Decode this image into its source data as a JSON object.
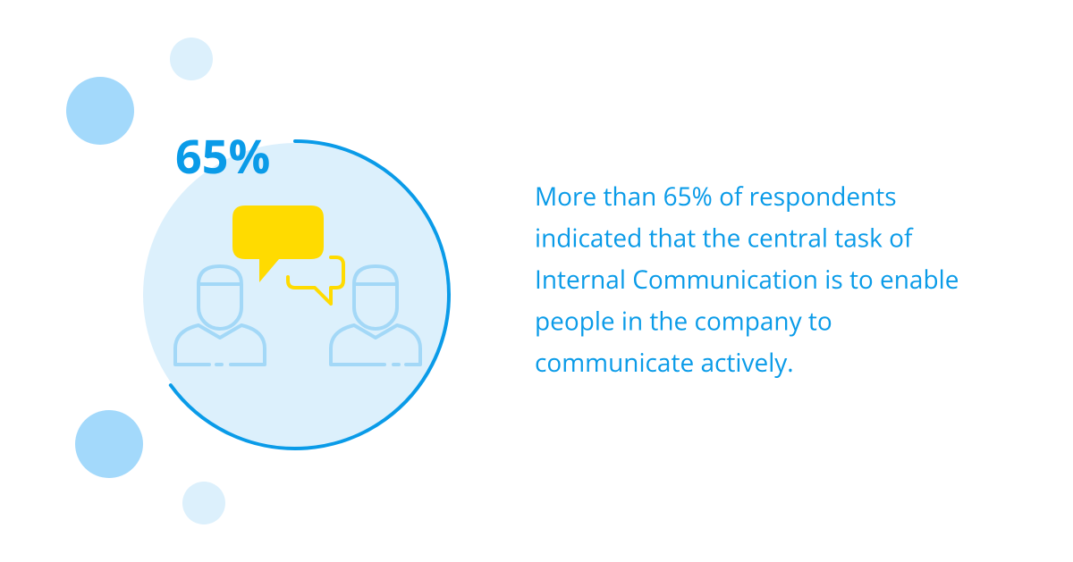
{
  "stat": {
    "value": 65,
    "label": "65%"
  },
  "description": [
    "More than 65% of respondents",
    "indicated that the central task of",
    "Internal Communication is to enable",
    "people in the company to",
    "communicate actively."
  ]
}
